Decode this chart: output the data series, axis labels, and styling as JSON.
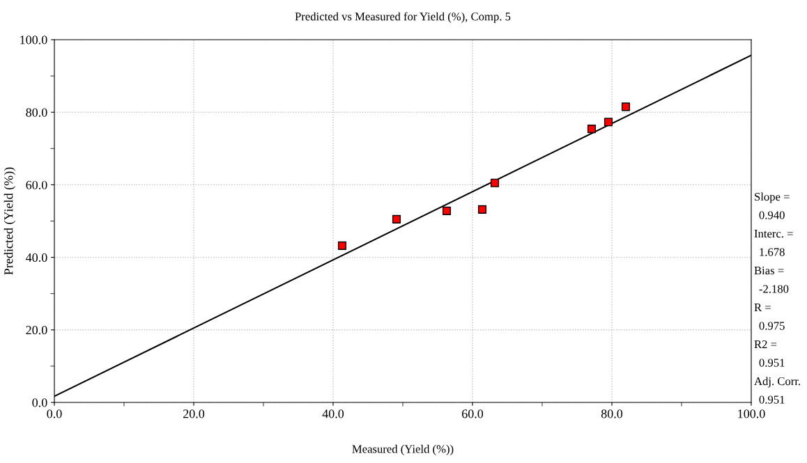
{
  "chart_data": {
    "type": "scatter",
    "title": "Predicted vs Measured for Yield (%), Comp. 5",
    "xlabel": "Measured (Yield (%))",
    "ylabel": "Predicted (Yield (%))",
    "series": [
      {
        "color": "#ff0000",
        "marker": "square",
        "x": [
          41.3,
          49.1,
          56.3,
          61.4,
          63.2,
          77.1,
          79.5,
          82.0
        ],
        "values": [
          43.2,
          50.5,
          52.8,
          53.2,
          60.5,
          75.4,
          77.3,
          81.5
        ]
      },
      {
        "type": "line",
        "color": "#000000",
        "marker": "none",
        "line_style": "solid",
        "x": [
          0,
          100
        ],
        "values": [
          1.7,
          95.7
        ]
      }
    ],
    "xlim": [
      0,
      100
    ],
    "ylim": [
      0,
      100
    ],
    "xticks": [
      {
        "value": 0,
        "label": "0.0"
      },
      {
        "value": 10,
        "label": null
      },
      {
        "value": 20,
        "label": "20.0"
      },
      {
        "value": 30,
        "label": null
      },
      {
        "value": 40,
        "label": "40.0"
      },
      {
        "value": 50,
        "label": null
      },
      {
        "value": 60,
        "label": "60.0"
      },
      {
        "value": 70,
        "label": null
      },
      {
        "value": 80,
        "label": "80.0"
      },
      {
        "value": 90,
        "label": null
      },
      {
        "value": 100,
        "label": "100.0"
      }
    ],
    "yticks": [
      {
        "value": 0,
        "label": "0.0"
      },
      {
        "value": 10,
        "label": null
      },
      {
        "value": 20,
        "label": "20.0"
      },
      {
        "value": 30,
        "label": null
      },
      {
        "value": 40,
        "label": "40.0"
      },
      {
        "value": 50,
        "label": null
      },
      {
        "value": 60,
        "label": "60.0"
      },
      {
        "value": 70,
        "label": null
      },
      {
        "value": 80,
        "label": "80.0"
      },
      {
        "value": 90,
        "label": null
      },
      {
        "value": 100,
        "label": "100.0"
      }
    ],
    "grid": true,
    "legend": false,
    "annotations": [
      "Slope =",
      "0.940",
      "Interc. =",
      "1.678",
      "Bias =",
      "-2.180",
      "R =",
      "0.975",
      "R2 =",
      "0.951",
      "Adj. Corr.",
      "0.951"
    ]
  }
}
